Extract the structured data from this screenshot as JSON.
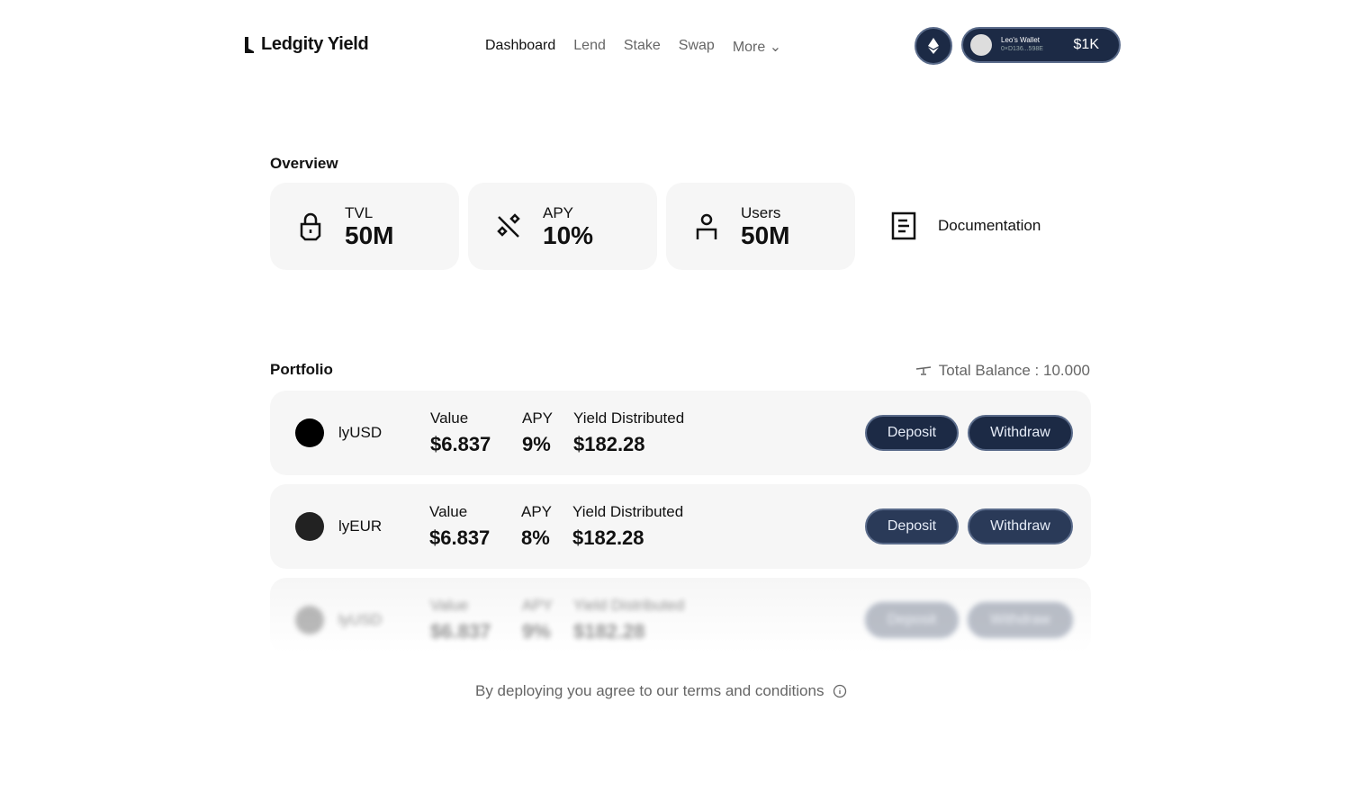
{
  "header": {
    "logo": "Ledgity Yield",
    "nav": [
      "Dashboard",
      "Lend",
      "Stake",
      "Swap",
      "More"
    ],
    "wallet": {
      "name": "Leo's Wallet",
      "address": "0×D136...598E",
      "balance": "$1K"
    }
  },
  "overview": {
    "title": "Overview",
    "stats": [
      {
        "label": "TVL",
        "value": "50M",
        "icon": "lock-icon"
      },
      {
        "label": "APY",
        "value": "10%",
        "icon": "percent-icon"
      },
      {
        "label": "Users",
        "value": "50M",
        "icon": "user-icon"
      }
    ],
    "documentation": "Documentation"
  },
  "portfolio": {
    "title": "Portfolio",
    "total_balance": "Total Balance : 10.000",
    "columns": {
      "value": "Value",
      "apy": "APY",
      "yield": "Yield Distributed"
    },
    "deposit": "Deposit",
    "withdraw": "Withdraw",
    "rows": [
      {
        "name": "lyUSD",
        "value": "$6.837",
        "apy": "9%",
        "yield": "$182.28"
      },
      {
        "name": "lyEUR",
        "value": "$6.837",
        "apy": "8%",
        "yield": "$182.28"
      },
      {
        "name": "lyUSD",
        "value": "$6.837",
        "apy": "9%",
        "yield": "$182.28"
      }
    ]
  },
  "footer": {
    "terms": "By deploying you agree to our terms and conditions"
  }
}
